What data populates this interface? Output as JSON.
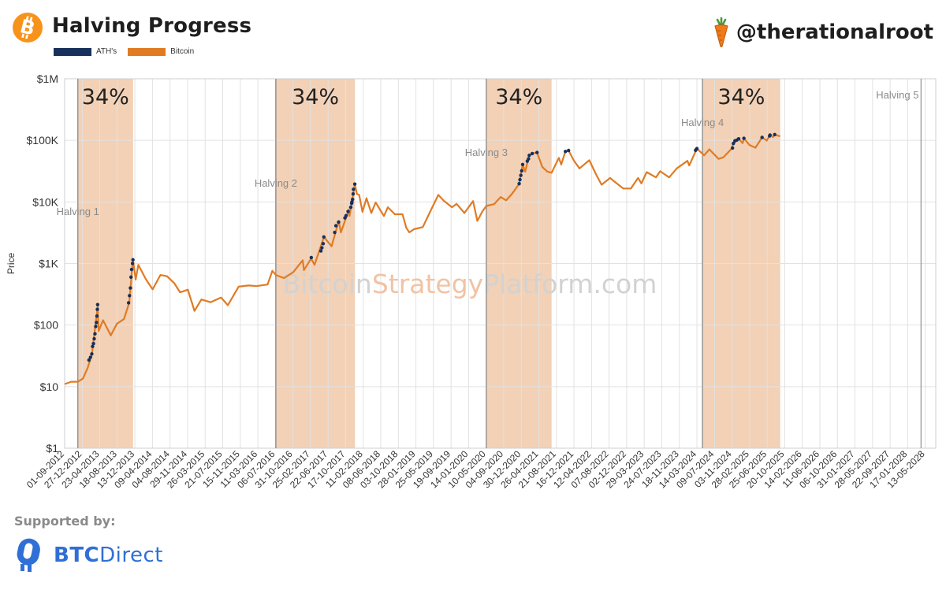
{
  "header": {
    "title": "Halving Progress",
    "handle": "@therationalroot",
    "legend": [
      {
        "label": "ATH's",
        "color": "#17305c"
      },
      {
        "label": "Bitcoin",
        "color": "#e07b24"
      }
    ]
  },
  "footer": {
    "supported_by": "Supported by:",
    "sponsor_part1": "BTC",
    "sponsor_part2": "Direct"
  },
  "colors": {
    "bitcoin": "#e07b24",
    "ath": "#17305c",
    "band": "#f0c9a9",
    "grid": "#e2e2e2",
    "watermark_gray": "#d2d2d2",
    "watermark_orange": "#f1c3a4",
    "sponsor_blue": "#2f6fd6"
  },
  "chart_data": {
    "type": "line",
    "title": "Halving Progress",
    "ylabel": "Price",
    "xlabel": "",
    "yscale": "log",
    "ylim": [
      1,
      1000000
    ],
    "yticks": [
      {
        "value": 1,
        "label": "$1"
      },
      {
        "value": 10,
        "label": "$10"
      },
      {
        "value": 100,
        "label": "$100"
      },
      {
        "value": 1000,
        "label": "$1K"
      },
      {
        "value": 10000,
        "label": "$10K"
      },
      {
        "value": 100000,
        "label": "$100K"
      },
      {
        "value": 1000000,
        "label": "$1M"
      }
    ],
    "xlim": [
      "2012-09-01",
      "2028-07-22"
    ],
    "xtick_labels": [
      "01-09-2012",
      "27-12-2012",
      "23-04-2013",
      "18-08-2013",
      "13-12-2013",
      "09-04-2014",
      "04-08-2014",
      "29-11-2014",
      "26-03-2015",
      "21-07-2015",
      "15-11-2015",
      "11-03-2016",
      "06-07-2016",
      "31-10-2016",
      "25-02-2017",
      "22-06-2017",
      "17-10-2017",
      "11-02-2018",
      "08-06-2018",
      "03-10-2018",
      "28-01-2019",
      "25-05-2019",
      "19-09-2019",
      "14-01-2020",
      "10-05-2020",
      "04-09-2020",
      "30-12-2020",
      "26-04-2021",
      "21-08-2021",
      "16-12-2021",
      "12-04-2022",
      "07-08-2022",
      "02-12-2022",
      "29-03-2023",
      "24-07-2023",
      "18-11-2023",
      "14-03-2024",
      "09-07-2024",
      "03-11-2024",
      "28-02-2025",
      "25-06-2025",
      "20-10-2025",
      "14-02-2026",
      "11-06-2026",
      "06-10-2026",
      "31-01-2027",
      "28-05-2027",
      "22-09-2027",
      "17-01-2028",
      "13-05-2028"
    ],
    "grid": true,
    "legend_position": "top-left",
    "watermark": [
      "Bitcoin",
      "Strategy",
      "Platform.com"
    ],
    "halvings": [
      {
        "label": "Halving 1",
        "date": "2012-11-28",
        "band_end": "2013-12-01",
        "band_label": "34%"
      },
      {
        "label": "Halving 2",
        "date": "2016-07-09",
        "band_end": "2017-12-18",
        "band_label": "34%"
      },
      {
        "label": "Halving 3",
        "date": "2020-05-11",
        "band_end": "2021-07-20",
        "band_label": "34%"
      },
      {
        "label": "Halving 4",
        "date": "2024-04-20",
        "band_end": "2025-09-20",
        "band_label": "34%"
      },
      {
        "label": "Halving 5",
        "date": "2028-04-15"
      }
    ],
    "series": [
      {
        "name": "Bitcoin",
        "color": "#e07b24",
        "points": [
          [
            "2012-09-01",
            11
          ],
          [
            "2012-10-15",
            12
          ],
          [
            "2012-11-28",
            12
          ],
          [
            "2013-01-01",
            13.5
          ],
          [
            "2013-02-01",
            20
          ],
          [
            "2013-03-01",
            33
          ],
          [
            "2013-04-09",
            200
          ],
          [
            "2013-04-16",
            80
          ],
          [
            "2013-05-15",
            120
          ],
          [
            "2013-07-05",
            68
          ],
          [
            "2013-08-15",
            105
          ],
          [
            "2013-10-01",
            125
          ],
          [
            "2013-11-05",
            230
          ],
          [
            "2013-11-30",
            1150
          ],
          [
            "2013-12-18",
            550
          ],
          [
            "2014-01-05",
            950
          ],
          [
            "2014-02-25",
            550
          ],
          [
            "2014-04-10",
            380
          ],
          [
            "2014-06-01",
            650
          ],
          [
            "2014-07-15",
            620
          ],
          [
            "2014-09-01",
            480
          ],
          [
            "2014-10-10",
            340
          ],
          [
            "2014-12-01",
            375
          ],
          [
            "2015-01-14",
            170
          ],
          [
            "2015-03-01",
            260
          ],
          [
            "2015-05-01",
            235
          ],
          [
            "2015-07-10",
            280
          ],
          [
            "2015-08-24",
            210
          ],
          [
            "2015-11-04",
            420
          ],
          [
            "2016-01-10",
            440
          ],
          [
            "2016-03-01",
            430
          ],
          [
            "2016-05-15",
            455
          ],
          [
            "2016-06-16",
            760
          ],
          [
            "2016-07-09",
            650
          ],
          [
            "2016-09-01",
            580
          ],
          [
            "2016-11-01",
            720
          ],
          [
            "2017-01-04",
            1130
          ],
          [
            "2017-01-12",
            780
          ],
          [
            "2017-03-01",
            1200
          ],
          [
            "2017-03-24",
            950
          ],
          [
            "2017-05-25",
            2700
          ],
          [
            "2017-07-15",
            1900
          ],
          [
            "2017-09-01",
            4900
          ],
          [
            "2017-09-15",
            3200
          ],
          [
            "2017-11-08",
            7500
          ],
          [
            "2017-11-12",
            5900
          ],
          [
            "2017-12-17",
            19500
          ],
          [
            "2017-12-31",
            13500
          ],
          [
            "2018-01-15",
            13000
          ],
          [
            "2018-02-06",
            6900
          ],
          [
            "2018-03-05",
            11500
          ],
          [
            "2018-04-06",
            6600
          ],
          [
            "2018-05-05",
            9800
          ],
          [
            "2018-06-29",
            5900
          ],
          [
            "2018-07-25",
            8200
          ],
          [
            "2018-09-10",
            6300
          ],
          [
            "2018-10-31",
            6300
          ],
          [
            "2018-11-25",
            3800
          ],
          [
            "2018-12-15",
            3200
          ],
          [
            "2019-01-15",
            3600
          ],
          [
            "2019-03-15",
            3900
          ],
          [
            "2019-05-15",
            8000
          ],
          [
            "2019-06-26",
            13000
          ],
          [
            "2019-08-01",
            10500
          ],
          [
            "2019-09-25",
            8200
          ],
          [
            "2019-10-26",
            9300
          ],
          [
            "2019-12-17",
            6600
          ],
          [
            "2020-02-13",
            10300
          ],
          [
            "2020-03-12",
            4900
          ],
          [
            "2020-04-15",
            7000
          ],
          [
            "2020-05-11",
            8600
          ],
          [
            "2020-07-01",
            9200
          ],
          [
            "2020-08-15",
            12000
          ],
          [
            "2020-09-20",
            10600
          ],
          [
            "2020-11-01",
            13800
          ],
          [
            "2020-12-15",
            19500
          ],
          [
            "2021-01-08",
            40500
          ],
          [
            "2021-01-25",
            31000
          ],
          [
            "2021-02-21",
            57000
          ],
          [
            "2021-03-13",
            61000
          ],
          [
            "2021-04-14",
            63500
          ],
          [
            "2021-05-19",
            37000
          ],
          [
            "2021-06-22",
            31000
          ],
          [
            "2021-07-20",
            29800
          ],
          [
            "2021-09-06",
            52000
          ],
          [
            "2021-09-22",
            40500
          ],
          [
            "2021-10-20",
            66000
          ],
          [
            "2021-11-10",
            68500
          ],
          [
            "2021-12-15",
            47000
          ],
          [
            "2022-01-22",
            35000
          ],
          [
            "2022-03-28",
            47500
          ],
          [
            "2022-05-12",
            28000
          ],
          [
            "2022-06-18",
            19000
          ],
          [
            "2022-08-14",
            24500
          ],
          [
            "2022-09-10",
            21500
          ],
          [
            "2022-11-09",
            16500
          ],
          [
            "2022-12-30",
            16500
          ],
          [
            "2023-02-16",
            24500
          ],
          [
            "2023-03-10",
            20000
          ],
          [
            "2023-04-14",
            30500
          ],
          [
            "2023-06-15",
            25000
          ],
          [
            "2023-07-13",
            31500
          ],
          [
            "2023-09-11",
            25000
          ],
          [
            "2023-11-01",
            35000
          ],
          [
            "2024-01-11",
            46500
          ],
          [
            "2024-01-23",
            39000
          ],
          [
            "2024-03-14",
            73500
          ],
          [
            "2024-05-01",
            57000
          ],
          [
            "2024-06-05",
            71500
          ],
          [
            "2024-08-05",
            50000
          ],
          [
            "2024-09-06",
            53000
          ],
          [
            "2024-10-29",
            72000
          ],
          [
            "2024-11-12",
            89000
          ],
          [
            "2024-12-17",
            106000
          ],
          [
            "2025-01-13",
            90000
          ],
          [
            "2025-01-21",
            108000
          ],
          [
            "2025-02-27",
            84000
          ],
          [
            "2025-04-08",
            76000
          ],
          [
            "2025-05-22",
            111500
          ],
          [
            "2025-06-22",
            99000
          ],
          [
            "2025-07-14",
            122000
          ],
          [
            "2025-08-03",
            113000
          ],
          [
            "2025-08-14",
            124000
          ],
          [
            "2025-09-20",
            116000
          ]
        ]
      },
      {
        "name": "ATH's",
        "color": "#17305c",
        "points": [
          [
            "2013-02-10",
            27
          ],
          [
            "2013-02-20",
            30
          ],
          [
            "2013-03-01",
            34
          ],
          [
            "2013-03-06",
            45
          ],
          [
            "2013-03-12",
            50
          ],
          [
            "2013-03-17",
            60
          ],
          [
            "2013-03-22",
            72
          ],
          [
            "2013-03-27",
            95
          ],
          [
            "2013-04-01",
            110
          ],
          [
            "2013-04-04",
            140
          ],
          [
            "2013-04-07",
            180
          ],
          [
            "2013-04-09",
            215
          ],
          [
            "2013-11-01",
            230
          ],
          [
            "2013-11-07",
            300
          ],
          [
            "2013-11-13",
            400
          ],
          [
            "2013-11-17",
            600
          ],
          [
            "2013-11-21",
            800
          ],
          [
            "2013-11-27",
            1000
          ],
          [
            "2013-11-30",
            1150
          ],
          [
            "2017-03-02",
            1250
          ],
          [
            "2017-05-05",
            1600
          ],
          [
            "2017-05-12",
            1800
          ],
          [
            "2017-05-20",
            2100
          ],
          [
            "2017-05-25",
            2700
          ],
          [
            "2017-08-05",
            3200
          ],
          [
            "2017-08-13",
            4100
          ],
          [
            "2017-08-31",
            4700
          ],
          [
            "2017-10-12",
            5500
          ],
          [
            "2017-10-20",
            6000
          ],
          [
            "2017-11-02",
            7000
          ],
          [
            "2017-11-20",
            8200
          ],
          [
            "2017-11-26",
            9500
          ],
          [
            "2017-11-28",
            10000
          ],
          [
            "2017-12-02",
            11000
          ],
          [
            "2017-12-06",
            13500
          ],
          [
            "2017-12-08",
            16000
          ],
          [
            "2017-12-17",
            19500
          ],
          [
            "2020-12-16",
            19800
          ],
          [
            "2020-12-21",
            23000
          ],
          [
            "2020-12-27",
            27000
          ],
          [
            "2021-01-02",
            32000
          ],
          [
            "2021-01-08",
            40500
          ],
          [
            "2021-02-08",
            46000
          ],
          [
            "2021-02-16",
            50000
          ],
          [
            "2021-02-21",
            57000
          ],
          [
            "2021-03-13",
            61000
          ],
          [
            "2021-04-14",
            63500
          ],
          [
            "2021-10-20",
            66000
          ],
          [
            "2021-11-10",
            68500
          ],
          [
            "2024-03-05",
            69000
          ],
          [
            "2024-03-11",
            72000
          ],
          [
            "2024-03-14",
            73500
          ],
          [
            "2024-11-06",
            75000
          ],
          [
            "2024-11-12",
            89000
          ],
          [
            "2024-11-22",
            98000
          ],
          [
            "2024-12-05",
            101000
          ],
          [
            "2024-12-17",
            106000
          ],
          [
            "2025-01-21",
            108000
          ],
          [
            "2025-05-22",
            111500
          ],
          [
            "2025-07-11",
            118000
          ],
          [
            "2025-07-14",
            122000
          ],
          [
            "2025-08-14",
            124000
          ]
        ]
      }
    ]
  }
}
